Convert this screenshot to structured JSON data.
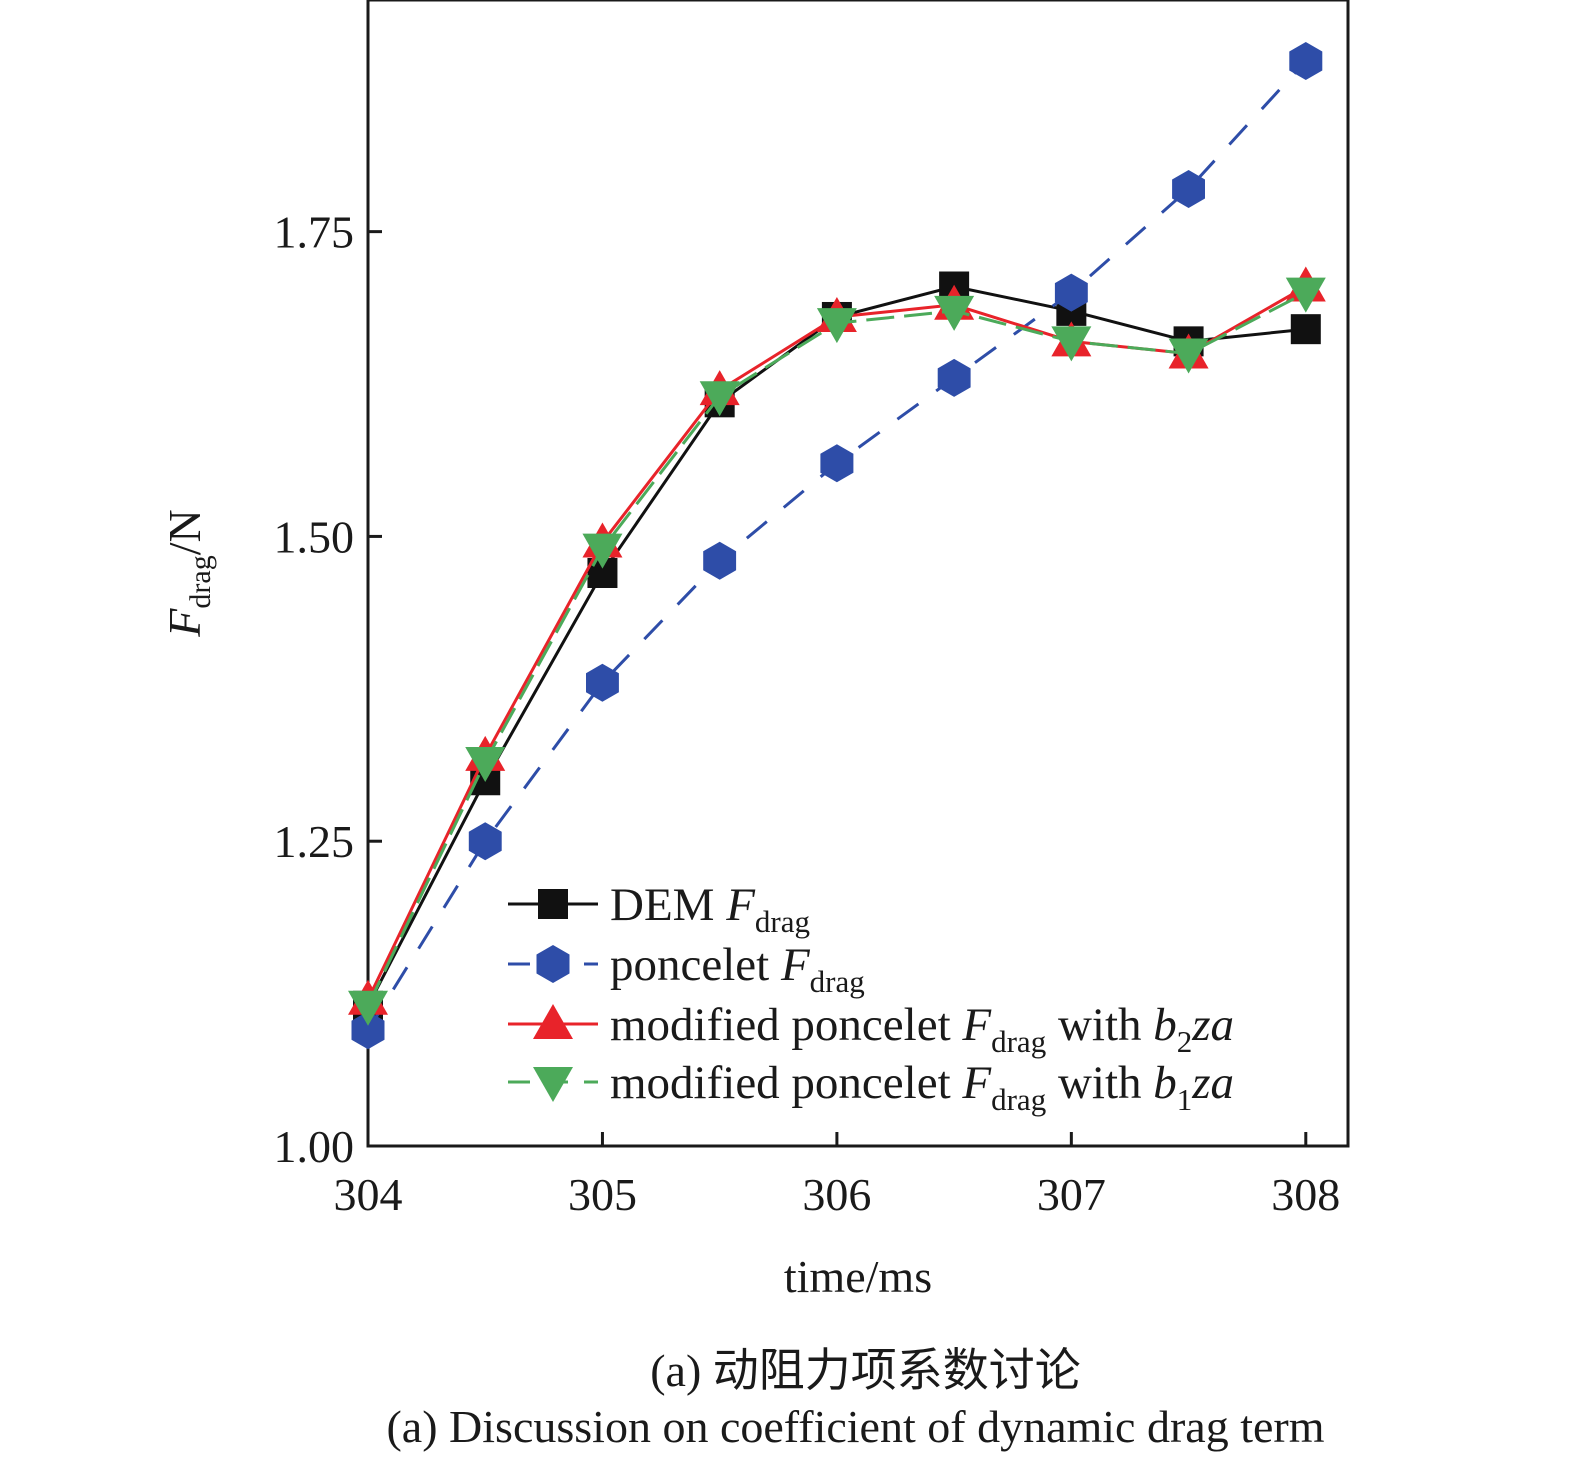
{
  "chart_data": {
    "type": "line",
    "xlabel": "time/ms",
    "ylabel": {
      "main": "F",
      "sub": "drag",
      "suffix": "/N"
    },
    "xlim": [
      304,
      308.18
    ],
    "ylim": [
      1.0,
      1.94
    ],
    "xticks": [
      "304",
      "305",
      "306",
      "307",
      "308"
    ],
    "yticks": [
      "1.00",
      "1.25",
      "1.50",
      "1.75"
    ],
    "x": [
      304,
      304.5,
      305,
      305.5,
      306,
      306.5,
      307,
      307.5,
      308
    ],
    "legend_position": "lower-right",
    "series": [
      {
        "id": "dem",
        "name_parts": [
          "DEM ",
          "F",
          "drag",
          ""
        ],
        "color": "#111111",
        "marker": "square",
        "dash": "solid",
        "values": [
          1.115,
          1.3,
          1.47,
          1.61,
          1.68,
          1.705,
          1.685,
          1.66,
          1.67
        ]
      },
      {
        "id": "poncelet",
        "name_parts": [
          "poncelet ",
          "F",
          "drag",
          ""
        ],
        "color": "#2e4da8",
        "marker": "hexagon",
        "dash": "dashed",
        "values": [
          1.095,
          1.25,
          1.38,
          1.48,
          1.56,
          1.63,
          1.7,
          1.785,
          1.89
        ]
      },
      {
        "id": "mod_b2",
        "name_parts": [
          "modified poncelet ",
          "F",
          "drag",
          " with ",
          "b",
          "2",
          "za"
        ],
        "color": "#e8232a",
        "marker": "triangle-up",
        "dash": "solid",
        "values": [
          1.12,
          1.32,
          1.495,
          1.62,
          1.68,
          1.69,
          1.66,
          1.65,
          1.705
        ]
      },
      {
        "id": "mod_b1",
        "name_parts": [
          "modified poncelet ",
          "F",
          "drag",
          " with ",
          "b",
          "1",
          "za"
        ],
        "color": "#4caa5a",
        "marker": "triangle-down",
        "dash": "dashed",
        "values": [
          1.115,
          1.315,
          1.49,
          1.615,
          1.675,
          1.685,
          1.66,
          1.65,
          1.7
        ]
      }
    ]
  },
  "caption": {
    "zh": "(a) 动阻力项系数讨论",
    "en": "(a) Discussion on coefficient of dynamic drag term"
  }
}
